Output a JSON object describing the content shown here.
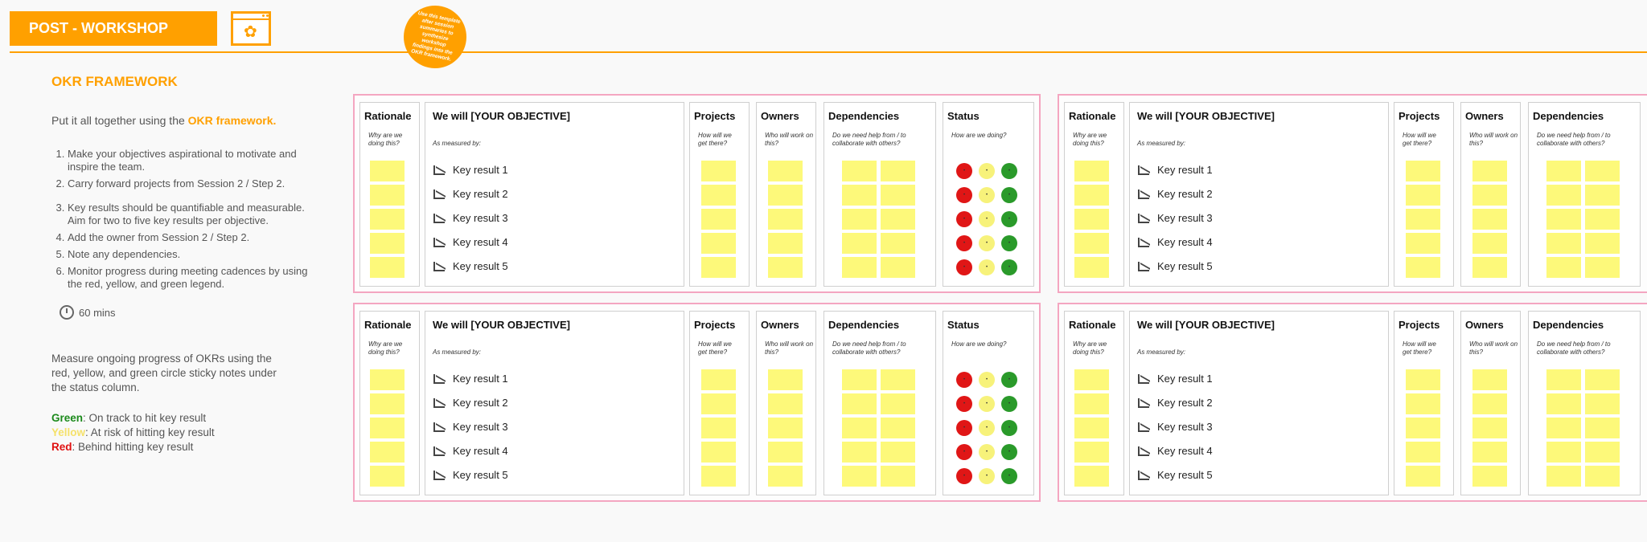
{
  "header": {
    "title": "POST - WORKSHOP",
    "icon": "certificate-icon",
    "badge_text": "Use this template after session summaries to synthesize workshop findings into the OKR framework."
  },
  "colors": {
    "accent": "#ffa000",
    "sticky": "#fdf97a",
    "board_border": "#f4a6c1",
    "red": "#e01616",
    "yellow": "#f7f27a",
    "green": "#2a9a2a"
  },
  "sidebar": {
    "title": "OKR FRAMEWORK",
    "intro_prefix": "Put it all together using the ",
    "intro_accent": "OKR framework.",
    "steps": [
      "Make your objectives aspirational to motivate and inspire the team.",
      "Carry forward projects from Session 2 / Step 2.",
      "Key results should be quantifiable and measurable. Aim for two to five key results per objective.",
      "Add the owner from Session 2 / Step 2.",
      "Note any dependencies.",
      "Monitor progress during meeting cadences by using the red, yellow, and green legend."
    ],
    "timer": "60 mins",
    "measure": "Measure ongoing progress of OKRs using the red, yellow, and green circle sticky notes under the status column.",
    "legend": {
      "green_label": "Green",
      "green_text": ": On track to hit key result",
      "yellow_label": "Yellow",
      "yellow_text": ": At risk of hitting key result",
      "red_label": "Red",
      "red_text": ": Behind hitting key result"
    }
  },
  "board": {
    "rationale": "Rationale",
    "rationale_sub": "Why are we doing this?",
    "objective": "We will [YOUR OBJECTIVE]",
    "objective_sub": "As measured by:",
    "key_results": [
      "Key result 1",
      "Key result 2",
      "Key result 3",
      "Key result 4",
      "Key result 5"
    ],
    "projects": "Projects",
    "projects_sub": "How will we get there?",
    "owners": "Owners",
    "owners_sub": "Who will work on this?",
    "dependencies": "Dependencies",
    "dependencies_sub": "Do we need help from / to collaborate with others?",
    "status": "Status",
    "status_sub": "How are we doing?",
    "dot_mark": "•"
  }
}
